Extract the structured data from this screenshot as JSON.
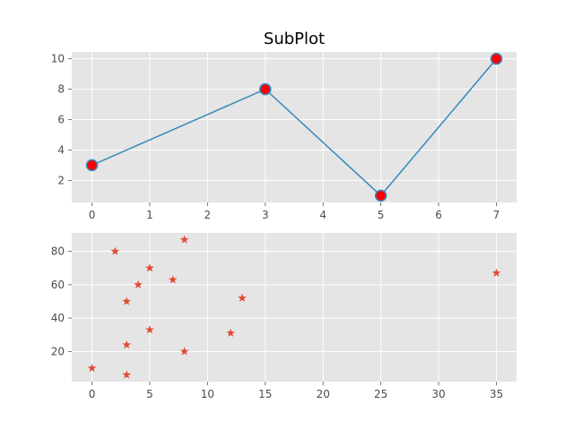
{
  "chart_data": [
    {
      "type": "line",
      "title": "SubPlot",
      "xlabel": "",
      "ylabel": "",
      "x": [
        0,
        3,
        5,
        7
      ],
      "y": [
        3,
        8,
        1,
        10
      ],
      "xlim": [
        -0.35,
        7.35
      ],
      "ylim": [
        0.55,
        10.45
      ],
      "xticks": [
        0,
        1,
        2,
        3,
        4,
        5,
        6,
        7
      ],
      "yticks": [
        2,
        4,
        6,
        8,
        10
      ],
      "grid": true,
      "line_color": "#348abd",
      "marker": "circle",
      "marker_face_color": "#ff0000",
      "marker_edge_color": "#348abd"
    },
    {
      "type": "scatter",
      "title": "",
      "xlabel": "",
      "ylabel": "",
      "x": [
        0,
        2,
        3,
        3,
        3,
        4,
        5,
        5,
        7,
        8,
        8,
        12,
        13,
        35
      ],
      "y": [
        10,
        80,
        6,
        24,
        50,
        60,
        33,
        70,
        63,
        20,
        87,
        31,
        52,
        67
      ],
      "xlim": [
        -1.75,
        36.75
      ],
      "ylim": [
        1.95,
        91.05
      ],
      "xticks": [
        0,
        5,
        10,
        15,
        20,
        25,
        30,
        35
      ],
      "yticks": [
        20,
        40,
        60,
        80
      ],
      "grid": true,
      "marker": "star",
      "marker_color": "#e24a33"
    }
  ]
}
